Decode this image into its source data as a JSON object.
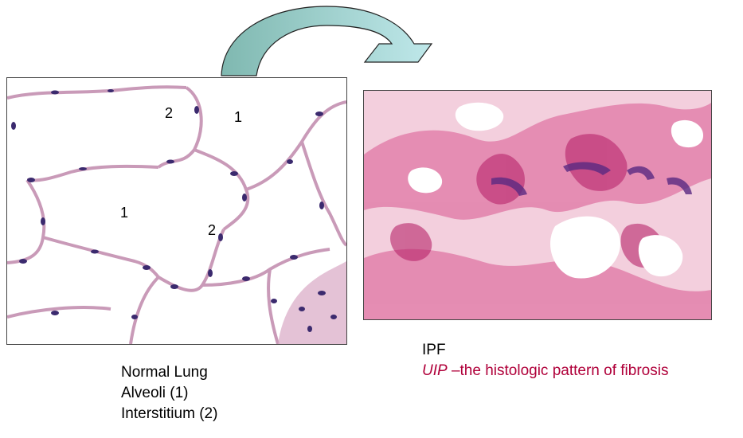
{
  "left_panel": {
    "labels": [
      "1",
      "1",
      "2",
      "2"
    ]
  },
  "captions": {
    "left": {
      "line1": "Normal Lung",
      "line2": "Alveoli (1)",
      "line3": "Interstitium (2)"
    },
    "right": {
      "line1": "IPF",
      "line2_italic": "UIP",
      "line2_rest": " –the histologic pattern of fibrosis"
    }
  },
  "colors": {
    "arrow_fill": "#a9dcdc",
    "tissue_pink": "#c7387a",
    "nuclei_purple": "#3b2a6e",
    "caption_accent": "#b0003a"
  }
}
